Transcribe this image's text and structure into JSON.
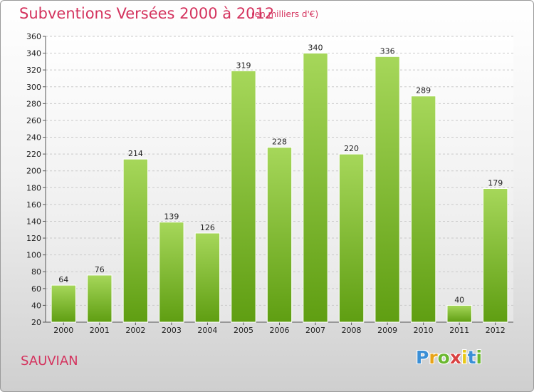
{
  "header": {
    "title": "Subventions Versées 2000 à 2012",
    "subtitle": "(en milliers d'€)"
  },
  "footer": {
    "commune": "SAUVIAN",
    "logo": {
      "letters": [
        "P",
        "r",
        "o",
        "x",
        "i",
        "t",
        "i"
      ],
      "colors": [
        "#3a8fd6",
        "#e8a317",
        "#6bb830",
        "#d94141",
        "#e8c817",
        "#3a8fd6",
        "#6bb830"
      ]
    }
  },
  "chart_data": {
    "type": "bar",
    "categories": [
      "2000",
      "2001",
      "2002",
      "2003",
      "2004",
      "2005",
      "2006",
      "2007",
      "2008",
      "2009",
      "2010",
      "2011",
      "2012"
    ],
    "values": [
      64,
      76,
      214,
      139,
      126,
      319,
      228,
      340,
      220,
      336,
      289,
      40,
      179
    ],
    "data_labels": [
      "64",
      "76",
      "214",
      "139",
      "126",
      "319",
      "228",
      "340",
      "220",
      "336",
      "289",
      "40",
      "179"
    ],
    "title": "Subventions Versées 2000 à 2012",
    "xlabel": "",
    "ylabel": "",
    "ylim": [
      20,
      360
    ],
    "yticks": [
      "20",
      "40",
      "60",
      "80",
      "100",
      "120",
      "140",
      "160",
      "180",
      "200",
      "220",
      "240",
      "260",
      "280",
      "300",
      "320",
      "340",
      "360"
    ],
    "grid": true,
    "legend": "none",
    "bar_color_top": "#a6d75a",
    "bar_color_bottom": "#5f9e12"
  }
}
